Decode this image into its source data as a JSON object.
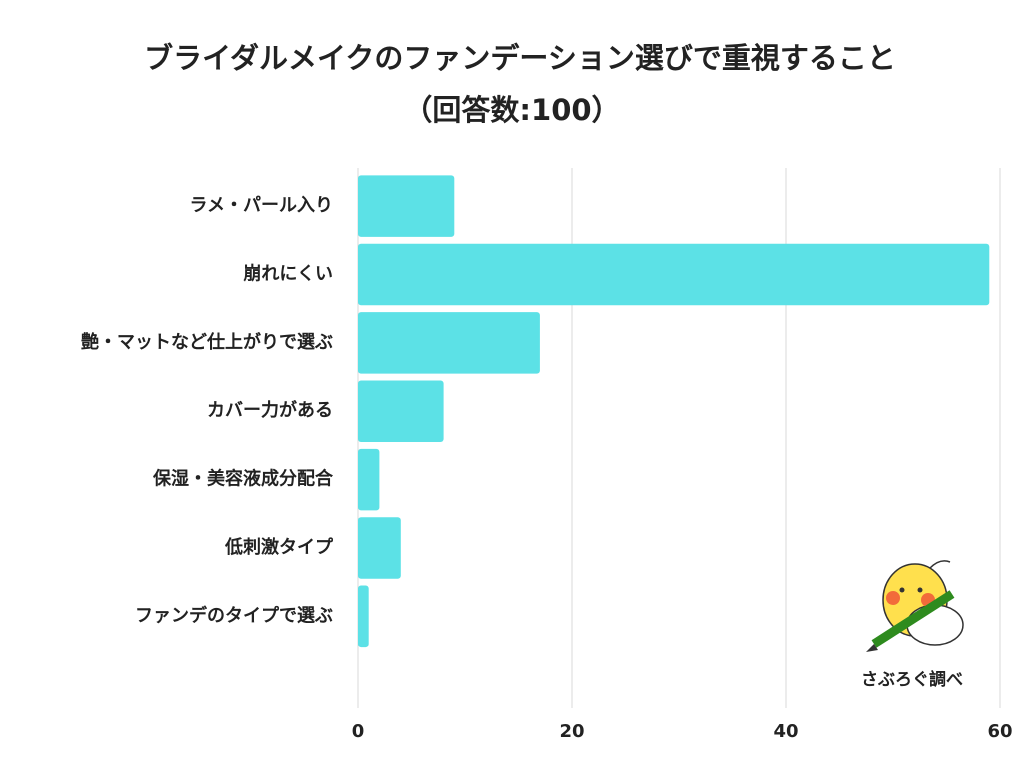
{
  "chart_data": {
    "type": "bar",
    "orientation": "horizontal",
    "title": "ブライダルメイクのファンデーション選びで重視すること",
    "subtitle": "（回答数:100）",
    "categories": [
      "ラメ・パール入り",
      "崩れにくい",
      "艶・マットなど仕上がりで選ぶ",
      "カバー力がある",
      "保湿・美容液成分配合",
      "低刺激タイプ",
      "ファンデのタイプで選ぶ"
    ],
    "values": [
      9,
      59,
      17,
      8,
      2,
      4,
      1
    ],
    "color": "#5ce1e6",
    "xlim": [
      0,
      60
    ],
    "xticks": [
      0,
      20,
      40,
      60
    ],
    "grid": true,
    "annotation": "さぶろぐ調べ"
  }
}
